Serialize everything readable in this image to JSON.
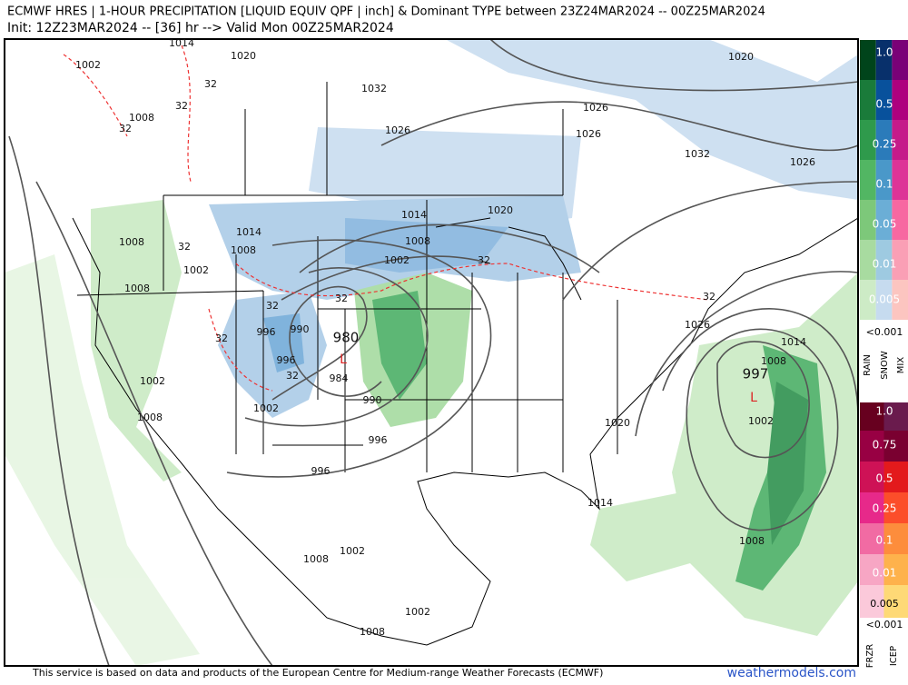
{
  "header": {
    "title_line1": "ECMWF HRES | 1-HOUR PRECIPITATION [LIQUID EQUIV QPF | inch] & Dominant TYPE between 23Z24MAR2024 -- 00Z25MAR2024",
    "title_line2": "Init: 12Z23MAR2024 -- [36] hr --> Valid Mon 00Z25MAR2024"
  },
  "map": {
    "isobar_labels": [
      "1002",
      "1014",
      "1020",
      "1032",
      "1026",
      "1026",
      "1026",
      "1020",
      "1032",
      "1026",
      "1008",
      "1008",
      "1014",
      "1008",
      "1002",
      "1008",
      "1014",
      "1020",
      "1008",
      "1002",
      "990",
      "996",
      "996",
      "984",
      "990",
      "996",
      "1002",
      "1008",
      "1002",
      "996",
      "1020",
      "1014",
      "1008",
      "1002",
      "1014",
      "1008",
      "1008",
      "1002",
      "1002",
      "1008",
      "1026"
    ],
    "freezing_labels": [
      "32",
      "32",
      "32",
      "32",
      "32",
      "32",
      "32",
      "32",
      "32",
      "32"
    ],
    "lows": [
      {
        "pressure": "980",
        "marker": "L"
      },
      {
        "pressure": "997",
        "marker": "L"
      }
    ]
  },
  "legend": {
    "rain_snow_mix": {
      "labels": [
        "1.0",
        "0.5",
        "0.25",
        "0.1",
        "0.05",
        "0.01",
        "0.005",
        "<0.001"
      ],
      "types": [
        "RAIN",
        "SNOW",
        "MIX"
      ]
    },
    "frzr_icep": {
      "labels": [
        "1.0",
        "0.75",
        "0.5",
        "0.25",
        "0.1",
        "0.01",
        "0.005",
        "<0.001"
      ],
      "types": [
        "FRZR",
        "ICEP"
      ]
    }
  },
  "footer": {
    "credit": "This service is based on data and products of the European Centre for Medium-range Weather Forecasts (ECMWF)",
    "site": "weathermodels.com"
  }
}
